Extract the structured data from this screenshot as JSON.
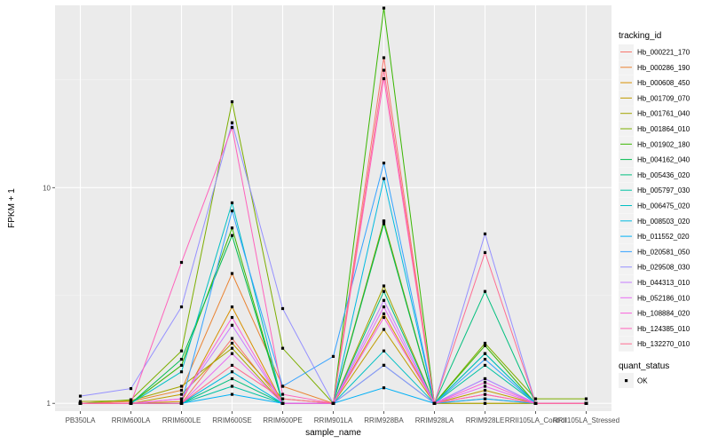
{
  "chart_data": {
    "type": "line",
    "title": "",
    "xlabel": "sample_name",
    "ylabel": "FPKM + 1",
    "y_scale": "log10",
    "ylim": [
      0.92,
      70
    ],
    "y_ticks": [
      1,
      10
    ],
    "grid": true,
    "panel_background": "#ebebeb",
    "legend_position": "right",
    "categories": [
      "PB350LA",
      "RRIM600LA",
      "RRIM600LE",
      "RRIM600SE",
      "RRIM600PE",
      "RRIM901LA",
      "RRIM928BA",
      "RRIM928LA",
      "RRIM928LE",
      "RRII105LA_Control",
      "RRII105LA_Stressed"
    ],
    "legend": {
      "color_title": "tracking_id",
      "shape_title": "quant_status",
      "shape_entries": [
        "OK"
      ]
    },
    "series": [
      {
        "name": "Hb_000221_170",
        "color": "#F8766D",
        "values": [
          1.0,
          1.0,
          1.0,
          2.0,
          1.0,
          1.0,
          40.0,
          1.0,
          1.05,
          1.0,
          1.0
        ]
      },
      {
        "name": "Hb_000286_190",
        "color": "#EA8331",
        "values": [
          1.0,
          1.02,
          1.15,
          4.0,
          1.2,
          1.0,
          7.0,
          1.0,
          1.1,
          1.0,
          1.0
        ]
      },
      {
        "name": "Hb_000608_450",
        "color": "#D89000",
        "values": [
          1.0,
          1.0,
          1.02,
          2.8,
          1.0,
          1.0,
          2.6,
          1.0,
          1.0,
          1.0,
          1.0
        ]
      },
      {
        "name": "Hb_001709_070",
        "color": "#C09B00",
        "values": [
          1.0,
          1.0,
          1.1,
          1.9,
          1.05,
          1.0,
          2.2,
          1.0,
          1.15,
          1.0,
          1.0
        ]
      },
      {
        "name": "Hb_001761_040",
        "color": "#A3A500",
        "values": [
          1.02,
          1.03,
          1.2,
          1.8,
          1.0,
          1.0,
          3.5,
          1.0,
          1.0,
          1.0,
          1.0
        ]
      },
      {
        "name": "Hb_001864_010",
        "color": "#7CAE00",
        "values": [
          1.0,
          1.04,
          1.75,
          25.0,
          1.8,
          1.0,
          7.0,
          1.0,
          1.9,
          1.05,
          1.05
        ]
      },
      {
        "name": "Hb_001902_180",
        "color": "#39B600",
        "values": [
          1.0,
          1.0,
          1.5,
          6.5,
          1.0,
          1.0,
          68.0,
          1.0,
          1.85,
          1.0,
          1.0
        ]
      },
      {
        "name": "Hb_004162_040",
        "color": "#00BB4E",
        "values": [
          1.0,
          1.0,
          1.6,
          6.0,
          1.0,
          1.0,
          6.8,
          1.0,
          1.7,
          1.0,
          1.0
        ]
      },
      {
        "name": "Hb_005436_020",
        "color": "#00BF7D",
        "values": [
          1.0,
          1.0,
          1.0,
          1.3,
          1.0,
          1.0,
          3.3,
          1.0,
          3.3,
          1.0,
          1.0
        ]
      },
      {
        "name": "Hb_005797_030",
        "color": "#00C1A3",
        "values": [
          1.0,
          1.0,
          1.0,
          1.2,
          1.0,
          1.0,
          1.5,
          1.0,
          1.5,
          1.0,
          1.0
        ]
      },
      {
        "name": "Hb_006475_020",
        "color": "#00BFC4",
        "values": [
          1.0,
          1.0,
          1.4,
          8.5,
          1.0,
          1.0,
          1.75,
          1.0,
          1.7,
          1.0,
          1.0
        ]
      },
      {
        "name": "Hb_008503_020",
        "color": "#00BAE0",
        "values": [
          1.0,
          1.0,
          1.0,
          1.4,
          1.0,
          1.0,
          11.0,
          1.0,
          1.3,
          1.0,
          1.0
        ]
      },
      {
        "name": "Hb_011552_020",
        "color": "#00B0F6",
        "values": [
          1.0,
          1.0,
          1.0,
          1.1,
          1.0,
          1.0,
          1.18,
          1.0,
          1.05,
          1.0,
          1.0
        ]
      },
      {
        "name": "Hb_020581_050",
        "color": "#35A2FF",
        "values": [
          1.0,
          1.0,
          1.0,
          7.8,
          1.2,
          1.65,
          13.0,
          1.0,
          1.6,
          1.0,
          1.0
        ]
      },
      {
        "name": "Hb_029508_030",
        "color": "#9590FF",
        "values": [
          1.08,
          1.17,
          2.8,
          20.0,
          2.75,
          1.0,
          1.5,
          1.0,
          6.1,
          1.0,
          1.0
        ]
      },
      {
        "name": "Hb_044313_010",
        "color": "#C77CFF",
        "values": [
          1.0,
          1.0,
          1.05,
          2.3,
          1.0,
          1.0,
          3.0,
          1.0,
          1.3,
          1.0,
          1.0
        ]
      },
      {
        "name": "Hb_052186_010",
        "color": "#E76BF3",
        "values": [
          1.0,
          1.0,
          1.0,
          1.7,
          1.0,
          1.0,
          2.8,
          1.0,
          1.2,
          1.0,
          1.0
        ]
      },
      {
        "name": "Hb_108884_020",
        "color": "#FA62DB",
        "values": [
          1.0,
          1.0,
          1.05,
          2.5,
          1.0,
          1.0,
          2.5,
          1.0,
          1.25,
          1.0,
          1.0
        ]
      },
      {
        "name": "Hb_124385_010",
        "color": "#FF62BC",
        "values": [
          1.0,
          1.0,
          4.5,
          19.0,
          1.1,
          1.0,
          32.0,
          1.0,
          1.1,
          1.0,
          1.0
        ]
      },
      {
        "name": "Hb_132270_010",
        "color": "#FF6C91",
        "values": [
          1.0,
          1.0,
          1.0,
          1.5,
          1.05,
          1.0,
          35.0,
          1.0,
          5.0,
          1.0,
          1.0
        ]
      }
    ]
  }
}
